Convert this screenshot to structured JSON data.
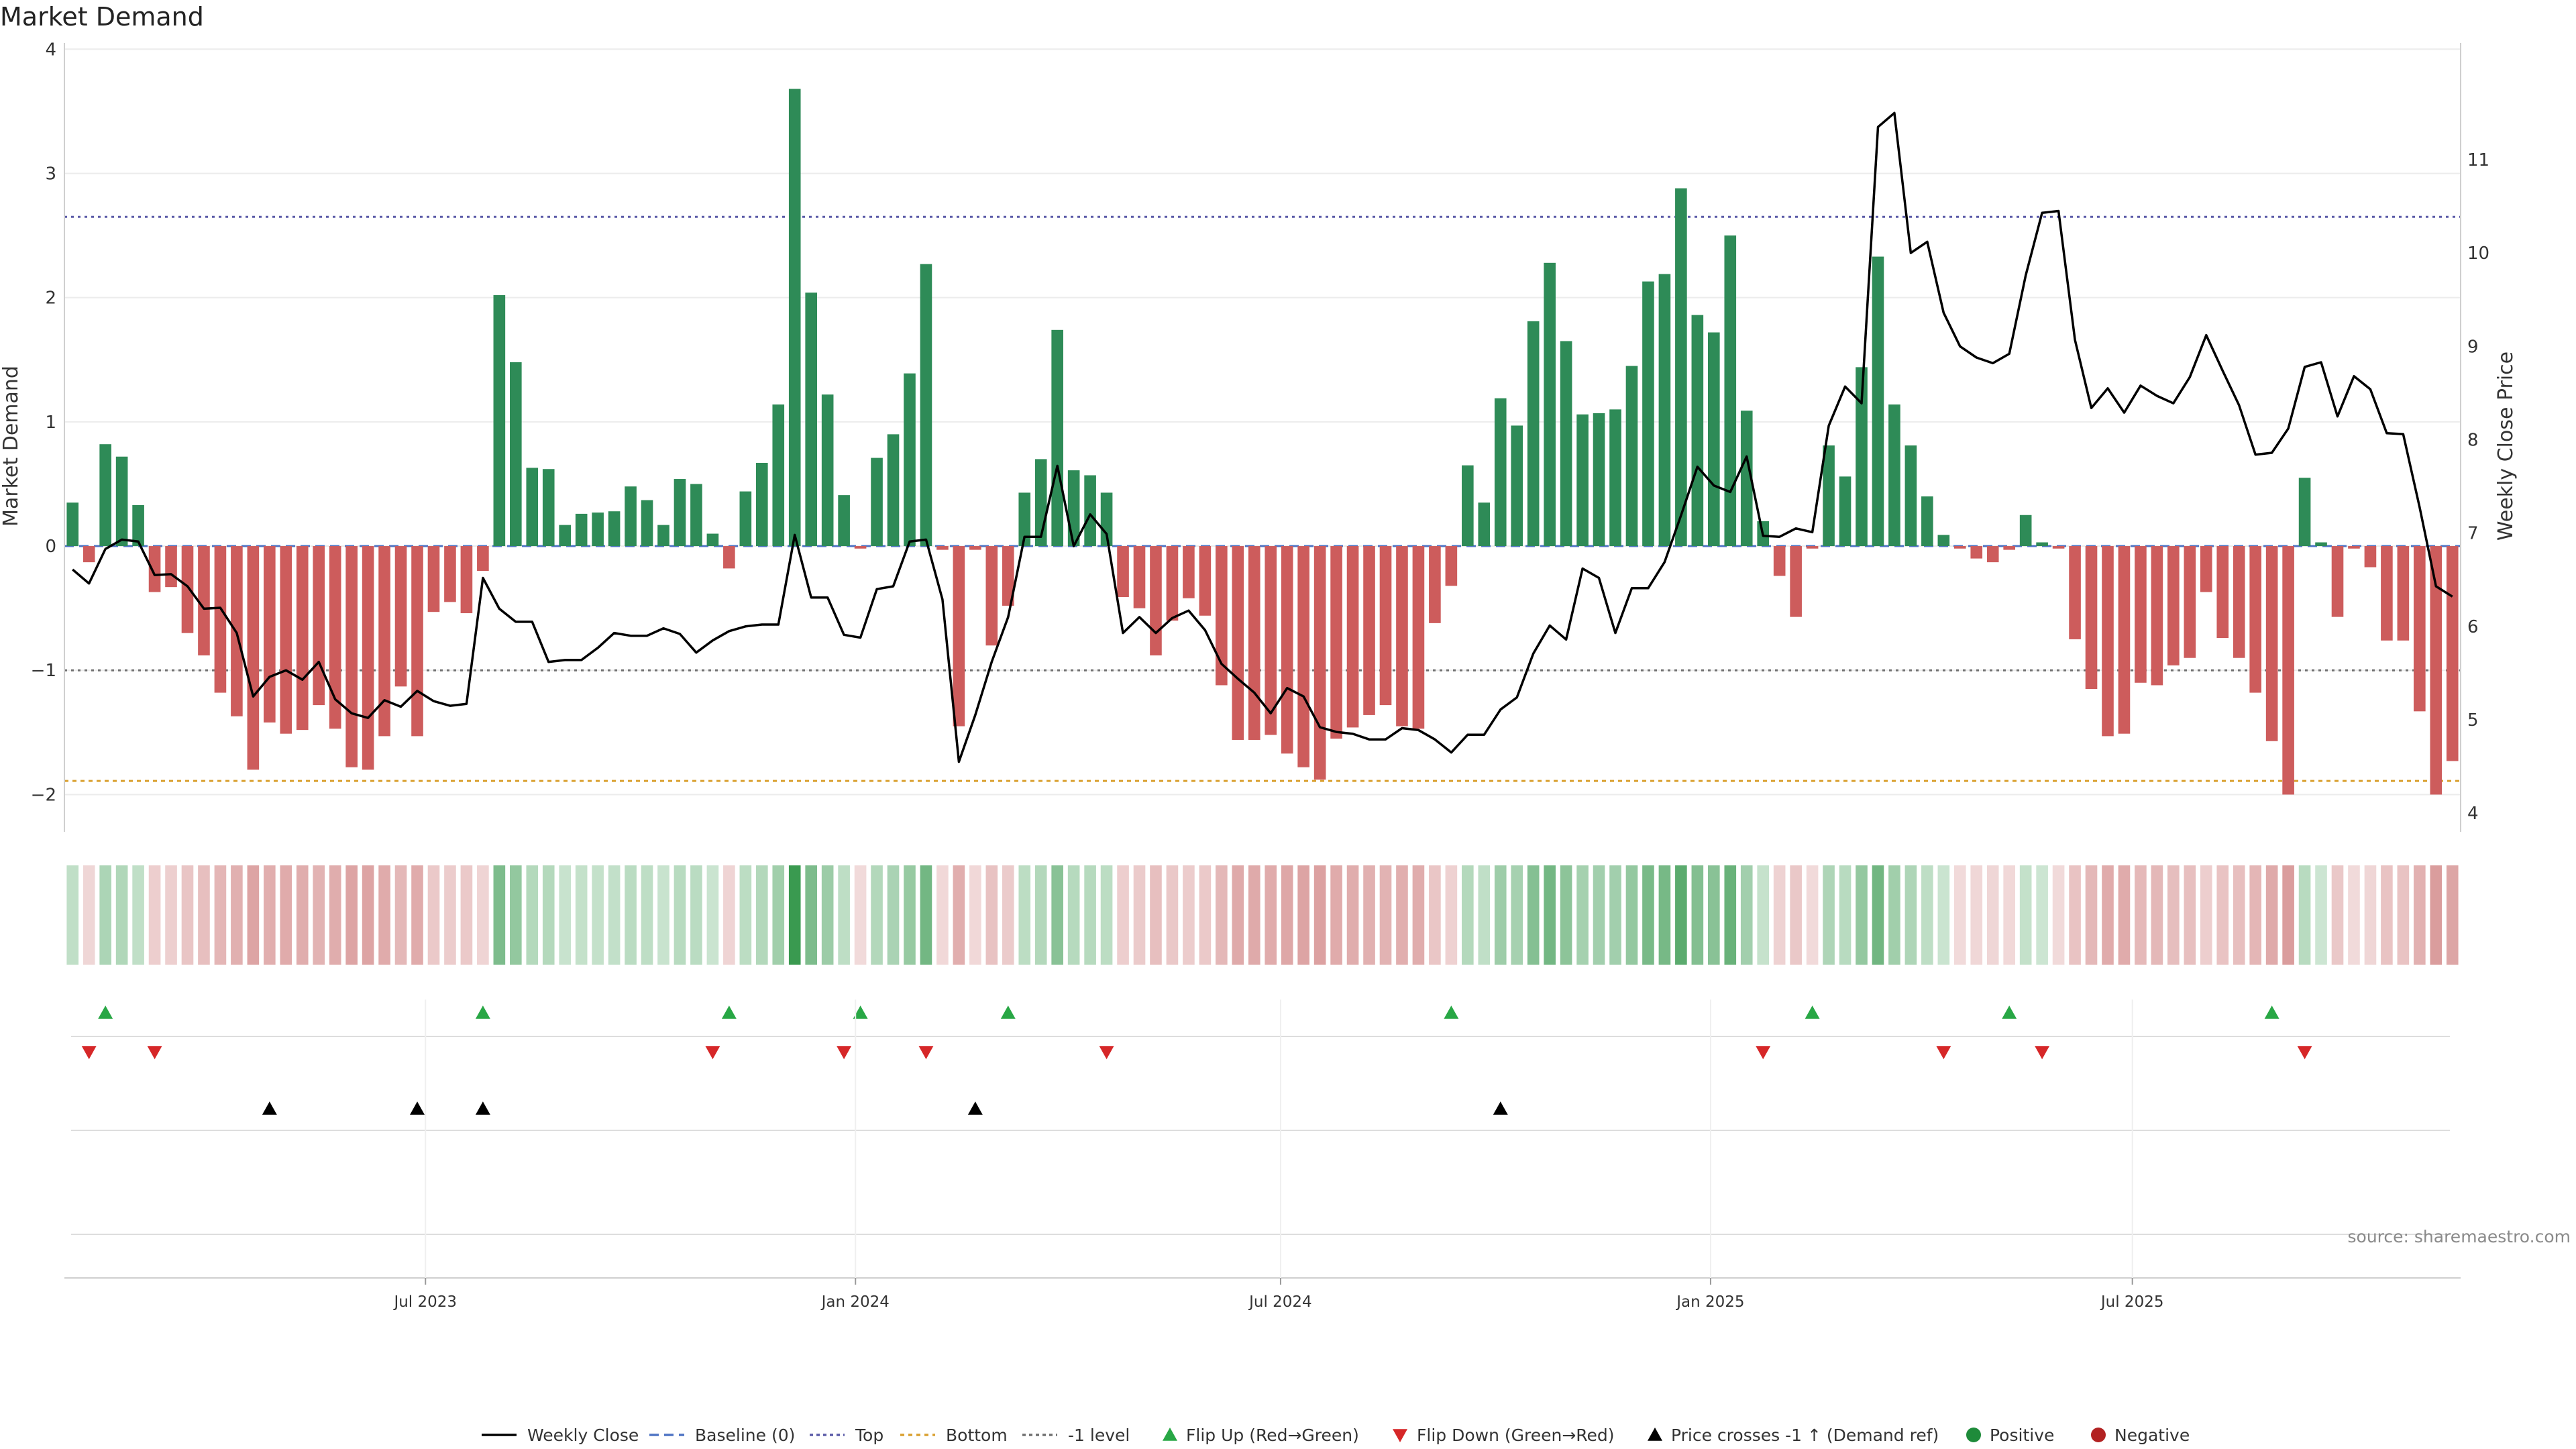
{
  "chart_data": {
    "type": "bar",
    "title": "Market Demand",
    "ylabel": "Market Demand",
    "ylabel_right": "Weekly Close Price",
    "ylim": [
      -2.3,
      4.05
    ],
    "ylim_right": [
      3.8,
      12.25
    ],
    "y_ticks": [
      -2,
      -1,
      0,
      1,
      2,
      3,
      4
    ],
    "y_right_ticks": [
      4,
      5,
      6,
      7,
      8,
      9,
      10,
      11
    ],
    "x_ticks": [
      "Jul 2023",
      "Jan 2024",
      "Jul 2024",
      "Jan 2025",
      "Jul 2025"
    ],
    "x_tick_weeks": [
      21.5,
      47.7,
      73.6,
      99.8,
      125.5
    ],
    "reference_lines": {
      "top": 2.65,
      "bottom": -1.89,
      "minus_one": -1.0,
      "baseline": 0
    },
    "demand": [
      0.35,
      -0.13,
      0.82,
      0.72,
      0.33,
      -0.37,
      -0.33,
      -0.7,
      -0.88,
      -1.18,
      -1.37,
      -1.8,
      -1.42,
      -1.51,
      -1.48,
      -1.28,
      -1.47,
      -1.78,
      -1.8,
      -1.53,
      -1.13,
      -1.53,
      -0.53,
      -0.45,
      -0.54,
      -0.2,
      2.02,
      1.48,
      0.63,
      0.62,
      0.17,
      0.26,
      0.27,
      0.28,
      0.48,
      0.37,
      0.17,
      0.54,
      0.5,
      0.1,
      -0.18,
      0.44,
      0.67,
      1.14,
      3.68,
      2.04,
      1.22,
      0.41,
      -0.02,
      0.71,
      0.9,
      1.39,
      2.27,
      -0.03,
      -1.45,
      -0.03,
      -0.8,
      -0.48,
      0.43,
      0.7,
      1.74,
      0.61,
      0.57,
      0.43,
      -0.41,
      -0.5,
      -0.88,
      -0.6,
      -0.42,
      -0.56,
      -1.12,
      -1.56,
      -1.56,
      -1.52,
      -1.67,
      -1.78,
      -1.88,
      -1.55,
      -1.46,
      -1.36,
      -1.28,
      -1.45,
      -1.47,
      -0.62,
      -0.32,
      0.65,
      0.35,
      1.19,
      0.97,
      1.81,
      2.28,
      1.65,
      1.06,
      1.07,
      1.1,
      1.45,
      2.13,
      2.19,
      2.88,
      1.86,
      1.72,
      2.5,
      1.09,
      0.2,
      -0.24,
      -0.57,
      -0.02,
      0.81,
      0.56,
      1.44,
      2.33,
      1.14,
      0.81,
      0.4,
      0.09,
      -0.02,
      -0.1,
      -0.13,
      -0.03,
      0.25,
      0.03,
      -0.02,
      -0.75,
      -1.15,
      -1.53,
      -1.51,
      -1.1,
      -1.12,
      -0.96,
      -0.9,
      -0.37,
      -0.74,
      -0.9,
      -1.18,
      -1.57,
      -2.0,
      0.55,
      0.03,
      -0.57,
      -0.02,
      -0.17,
      -0.76,
      -0.76,
      -1.33,
      -2.0,
      -1.73
    ],
    "close": [
      6.61,
      6.46,
      6.83,
      6.93,
      6.91,
      6.55,
      6.56,
      6.43,
      6.19,
      6.2,
      5.93,
      5.25,
      5.46,
      5.53,
      5.43,
      5.62,
      5.22,
      5.07,
      5.02,
      5.21,
      5.14,
      5.31,
      5.2,
      5.15,
      5.17,
      6.52,
      6.19,
      6.05,
      6.05,
      5.62,
      5.64,
      5.64,
      5.77,
      5.93,
      5.9,
      5.9,
      5.98,
      5.92,
      5.72,
      5.85,
      5.95,
      6.0,
      6.02,
      6.02,
      6.98,
      6.31,
      6.31,
      5.91,
      5.88,
      6.4,
      6.43,
      6.91,
      6.93,
      6.29,
      4.55,
      5.05,
      5.62,
      6.1,
      6.96,
      6.96,
      7.72,
      6.86,
      7.2,
      6.99,
      5.93,
      6.1,
      5.93,
      6.09,
      6.17,
      5.96,
      5.6,
      5.44,
      5.29,
      5.07,
      5.34,
      5.25,
      4.92,
      4.87,
      4.85,
      4.79,
      4.79,
      4.91,
      4.89,
      4.79,
      4.65,
      4.84,
      4.84,
      5.11,
      5.24,
      5.71,
      6.01,
      5.86,
      6.62,
      6.52,
      5.93,
      6.41,
      6.41,
      6.69,
      7.19,
      7.71,
      7.51,
      7.44,
      7.82,
      6.97,
      6.96,
      7.05,
      7.01,
      8.15,
      8.57,
      8.39,
      11.35,
      11.5,
      10.0,
      10.12,
      9.36,
      9.0,
      8.88,
      8.82,
      8.92,
      9.76,
      10.43,
      10.45,
      9.07,
      8.34,
      8.55,
      8.29,
      8.58,
      8.47,
      8.39,
      8.67,
      9.12,
      8.74,
      8.37,
      7.84,
      7.86,
      8.12,
      8.78,
      8.83,
      8.25,
      8.68,
      8.54,
      8.07,
      8.06,
      7.28,
      6.43,
      6.32
    ],
    "flip_up_weeks": [
      2,
      25,
      40,
      48,
      57,
      84,
      106,
      118,
      134
    ],
    "flip_down_weeks": [
      1,
      5,
      39,
      47,
      52,
      63,
      103,
      114,
      120,
      136
    ],
    "price_cross_weeks": [
      12,
      21,
      25,
      55,
      87
    ],
    "legend": [
      "Weekly Close",
      "Baseline (0)",
      "Top",
      "Bottom",
      "-1 level",
      "Flip Up (Red→Green)",
      "Flip Down (Green→Red)",
      "Price crosses -1 ↑ (Demand ref)",
      "Positive",
      "Negative"
    ]
  },
  "source": "source: sharemaestro.com",
  "colors": {
    "positive_bar": "#2e8b57",
    "negative_bar": "#cd5c5c",
    "close_line": "#000000",
    "baseline": "#4f74c4",
    "top_line": "#5b5ba8",
    "bottom_line": "#d9a030",
    "minus_one_line": "#707070",
    "flip_up": "#28a745",
    "flip_down": "#d62728",
    "price_cross": "#000000",
    "positive_dot": "#1e8b3a",
    "negative_dot": "#b22222",
    "strip_positive": "#3a9a50",
    "strip_negative": "#c76a6a",
    "grid": "#ececec"
  }
}
